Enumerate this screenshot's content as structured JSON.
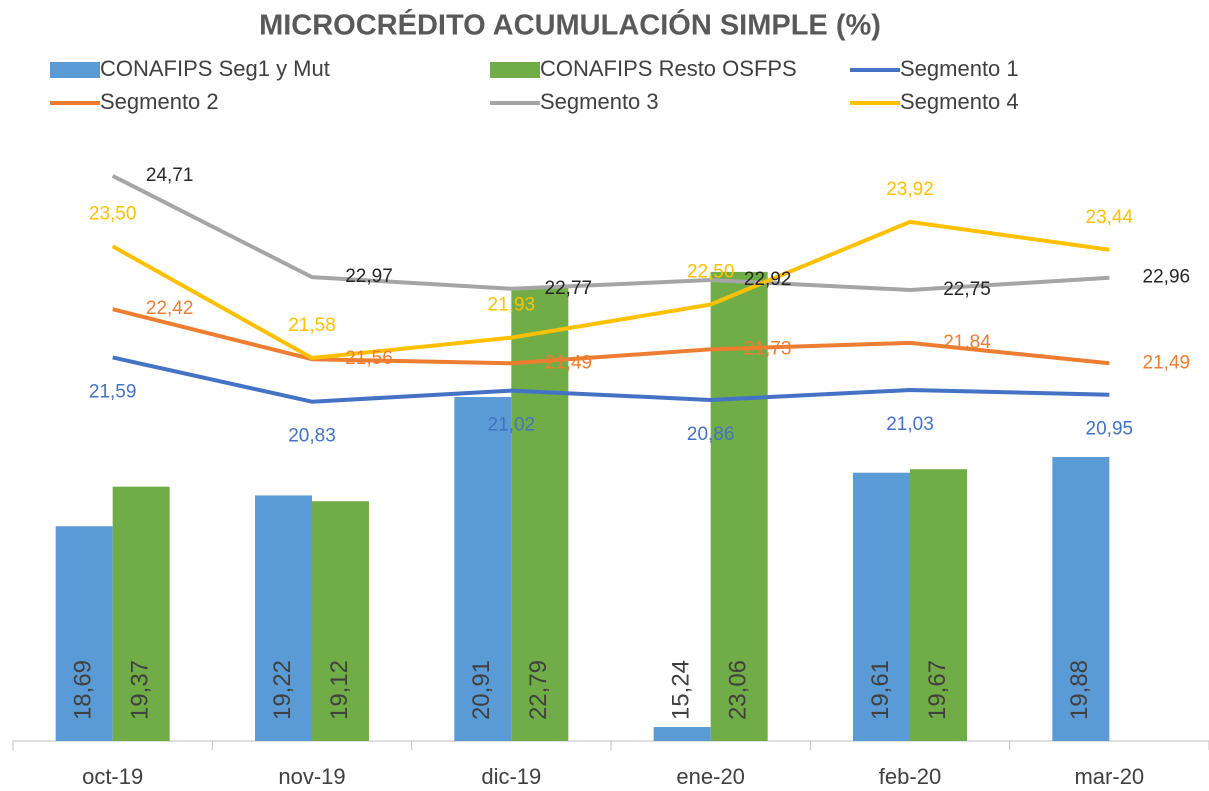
{
  "chart_data": {
    "type": "bar",
    "title": "MICROCRÉDITO ACUMULACIÓN SIMPLE (%)",
    "categories": [
      "oct-19",
      "nov-19",
      "dic-19",
      "ene-20",
      "feb-20",
      "mar-20"
    ],
    "ylim": [
      15,
      25
    ],
    "series": [
      {
        "name": "CONAFIPS Seg1 y Mut",
        "type": "bar",
        "color": "#5b9bd5",
        "values": [
          18.69,
          19.22,
          20.91,
          15.24,
          19.61,
          19.88
        ],
        "value_labels": [
          "18,69",
          "19,22",
          "20,91",
          "15,24",
          "19,61",
          "19,88"
        ]
      },
      {
        "name": "CONAFIPS Resto OSFPS",
        "type": "bar",
        "color": "#70ad47",
        "values": [
          19.37,
          19.12,
          22.79,
          23.06,
          19.67,
          null
        ],
        "value_labels": [
          "19,37",
          "19,12",
          "22,79",
          "23,06",
          "19,67",
          null
        ]
      },
      {
        "name": "Segmento 1",
        "type": "line",
        "color": "#4472c4",
        "values": [
          21.59,
          20.83,
          21.02,
          20.86,
          21.03,
          20.95
        ],
        "value_labels": [
          "21,59",
          "20,83",
          "21,02",
          "20,86",
          "21,03",
          "20,95"
        ]
      },
      {
        "name": "Segmento 2",
        "type": "line",
        "color": "#ed7d31",
        "values": [
          22.42,
          21.56,
          21.49,
          21.73,
          21.84,
          21.49
        ],
        "value_labels": [
          "22,42",
          "21,56",
          "21,49",
          "21,73",
          "21,84",
          "21,49"
        ]
      },
      {
        "name": "Segmento 3",
        "type": "line",
        "color": "#a5a5a5",
        "values": [
          24.71,
          22.97,
          22.77,
          22.92,
          22.75,
          22.96
        ],
        "value_labels": [
          "24,71",
          "22,97",
          "22,77",
          "22,92",
          "22,75",
          "22,96"
        ]
      },
      {
        "name": "Segmento 4",
        "type": "line",
        "color": "#ffc000",
        "values": [
          23.5,
          21.58,
          21.93,
          22.5,
          23.92,
          23.44
        ],
        "value_labels": [
          "23,50",
          "21,58",
          "21,93",
          "22,50",
          "23,92",
          "23,44"
        ]
      }
    ]
  }
}
